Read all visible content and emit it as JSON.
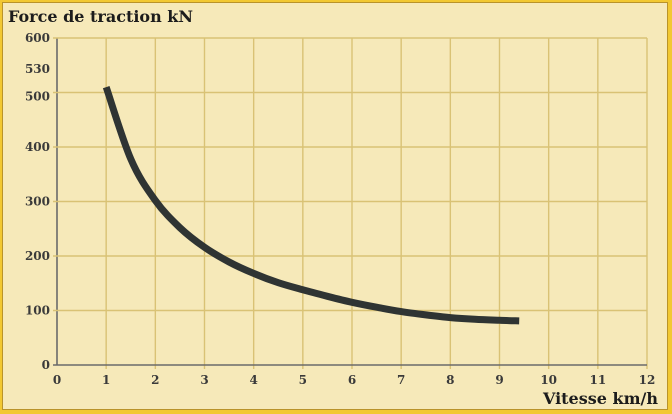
{
  "chart_data": {
    "type": "line",
    "ylabel": "Force de traction kN",
    "xlabel": "Vitesse km/h",
    "xlim": [
      0,
      12
    ],
    "ylim": [
      0,
      600
    ],
    "grid": true,
    "x_ticks": [
      "0",
      "1",
      "2",
      "3",
      "4",
      "5",
      "6",
      "7",
      "8",
      "9",
      "10",
      "11",
      "12"
    ],
    "y_ticks": [
      {
        "value": 0,
        "label": "0"
      },
      {
        "value": 100,
        "label": "100"
      },
      {
        "value": 200,
        "label": "200"
      },
      {
        "value": 300,
        "label": "300"
      },
      {
        "value": 400,
        "label": "400"
      },
      {
        "value": 500,
        "label": "500"
      },
      {
        "value": 530,
        "label": "530"
      },
      {
        "value": 600,
        "label": "600"
      }
    ],
    "series": [
      {
        "x": [
          1,
          1.5,
          2,
          2.5,
          3,
          3.5,
          4,
          4.5,
          5,
          5.5,
          6,
          6.5,
          7,
          7.5,
          8,
          8.5,
          9,
          9.4
        ],
        "y": [
          510,
          378,
          302,
          252,
          216,
          189,
          168,
          151,
          138,
          126,
          115,
          106,
          98,
          92,
          87,
          84,
          82,
          81
        ],
        "color": "#2f3433"
      }
    ],
    "colors": {
      "background": "#f6e9b9",
      "border": "#f2c832",
      "grid": "#d9c275",
      "axis": "#6a6a6a",
      "curve": "#2f3433"
    }
  }
}
